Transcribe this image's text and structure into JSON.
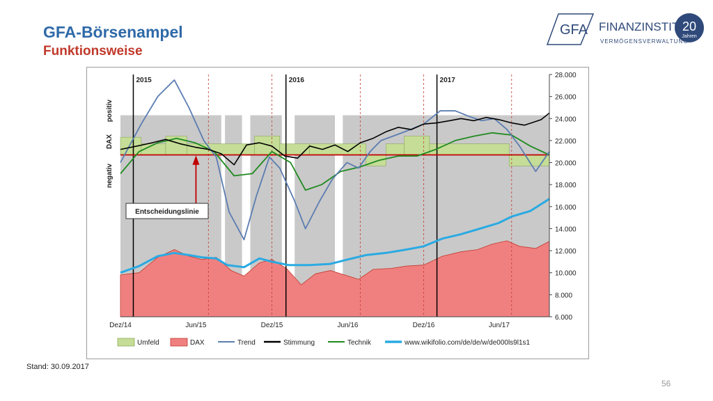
{
  "page": {
    "title": "GFA-Börsenampel",
    "subtitle": "Funktionsweise",
    "stand": "Stand: 30.09.2017",
    "page_number": "56"
  },
  "logo": {
    "badge_text": "GFA",
    "name_part1": "Finanz",
    "name_part2": "Institut",
    "tagline": "Vermögensverwaltung",
    "anniversary_number": "20",
    "anniversary_text": "Jahren",
    "color": "#2f4a7a"
  },
  "chart_data": {
    "type": "line",
    "y_axis": {
      "min": 6000,
      "max": 28000,
      "ticks": [
        "28.000",
        "26.000",
        "24.000",
        "22.000",
        "20.000",
        "18.000",
        "16.000",
        "14.000",
        "12.000",
        "10.000",
        "8.000",
        "6.000"
      ]
    },
    "x_axis": {
      "start": "2014-12-01",
      "end": "2017-09-30",
      "tick_labels": [
        "Dez/14",
        "Jun/15",
        "Dez/15",
        "Jun/16",
        "Dez/16",
        "Jun/17"
      ]
    },
    "year_labels": [
      "2015",
      "2016",
      "2017"
    ],
    "left_labels": {
      "top": "positiv",
      "middle": "DAX",
      "bottom": "negativ"
    },
    "annotation": "Entscheidungslinie",
    "decision_line": 20700,
    "legend": [
      "Umfeld",
      "DAX",
      "Trend",
      "Stimmung",
      "Technik",
      "www.wikifolio.com/de/de/w/de000ls9l1s1"
    ],
    "colors": {
      "umfeld": "#c5dd96",
      "dax": "#f08080",
      "trend": "#5b7db1",
      "stimmung": "#000000",
      "technik": "#1f8a1f",
      "wikifolio": "#2aaae2",
      "decision": "#c00000",
      "gray_band": "#c0c0c0"
    },
    "dax": {
      "x": [
        "2014-12-01",
        "2015-01-15",
        "2015-03-01",
        "2015-04-10",
        "2015-05-15",
        "2015-06-15",
        "2015-07-20",
        "2015-08-25",
        "2015-09-25",
        "2015-11-01",
        "2015-12-01",
        "2016-01-05",
        "2016-02-10",
        "2016-03-15",
        "2016-04-20",
        "2016-06-27",
        "2016-08-01",
        "2016-09-15",
        "2016-10-20",
        "2016-12-01",
        "2017-01-15",
        "2017-03-01",
        "2017-04-10",
        "2017-05-15",
        "2017-06-20",
        "2017-07-20",
        "2017-08-28",
        "2017-09-30"
      ],
      "values": [
        9800,
        10000,
        11400,
        12100,
        11500,
        11200,
        11400,
        10200,
        9700,
        10900,
        11200,
        10400,
        8900,
        9900,
        10200,
        9400,
        10300,
        10400,
        10600,
        10700,
        11500,
        11900,
        12100,
        12600,
        12900,
        12400,
        12200,
        12850
      ]
    },
    "wikifolio": {
      "x": [
        "2014-12-01",
        "2015-01-15",
        "2015-03-01",
        "2015-04-10",
        "2015-05-15",
        "2015-06-15",
        "2015-07-20",
        "2015-08-15",
        "2015-09-25",
        "2015-11-01",
        "2015-12-01",
        "2016-01-10",
        "2016-03-01",
        "2016-04-20",
        "2016-06-01",
        "2016-07-15",
        "2016-09-01",
        "2016-10-20",
        "2016-12-01",
        "2017-01-15",
        "2017-03-01",
        "2017-04-15",
        "2017-05-30",
        "2017-07-01",
        "2017-08-15",
        "2017-09-30"
      ],
      "values": [
        10000,
        10600,
        11500,
        11800,
        11600,
        11400,
        11300,
        10700,
        10500,
        11300,
        11000,
        10700,
        10700,
        10800,
        11200,
        11600,
        11800,
        12100,
        12400,
        13100,
        13500,
        14000,
        14500,
        15100,
        15600,
        16700
      ]
    },
    "trend": {
      "x": [
        "2014-12-01",
        "2015-01-20",
        "2015-03-01",
        "2015-04-10",
        "2015-05-15",
        "2015-06-20",
        "2015-07-20",
        "2015-08-20",
        "2015-09-25",
        "2015-10-25",
        "2015-11-25",
        "2015-12-20",
        "2016-01-25",
        "2016-02-20",
        "2016-03-25",
        "2016-04-25",
        "2016-05-30",
        "2016-06-27",
        "2016-07-25",
        "2016-08-20",
        "2016-09-25",
        "2016-10-30",
        "2016-12-01",
        "2017-01-10",
        "2017-02-15",
        "2017-03-20",
        "2017-04-20",
        "2017-05-20",
        "2017-06-20",
        "2017-07-20",
        "2017-08-28",
        "2017-09-30"
      ],
      "values": [
        20000,
        23500,
        26000,
        27500,
        25000,
        22000,
        20500,
        15500,
        13000,
        17000,
        20500,
        19500,
        16500,
        14000,
        16500,
        18500,
        20000,
        19500,
        21000,
        22000,
        22500,
        23000,
        23500,
        24700,
        24700,
        24200,
        23800,
        24000,
        23000,
        21500,
        19200,
        21000
      ]
    },
    "stimmung": {
      "x": [
        "2014-12-01",
        "2015-01-10",
        "2015-02-15",
        "2015-03-20",
        "2015-04-25",
        "2015-05-30",
        "2015-07-01",
        "2015-08-01",
        "2015-09-01",
        "2015-10-01",
        "2015-11-01",
        "2015-12-01",
        "2016-01-01",
        "2016-02-01",
        "2016-03-01",
        "2016-04-01",
        "2016-05-01",
        "2016-06-01",
        "2016-07-01",
        "2016-08-01",
        "2016-09-01",
        "2016-10-01",
        "2016-11-01",
        "2016-12-01",
        "2017-01-01",
        "2017-02-01",
        "2017-03-01",
        "2017-04-01",
        "2017-05-01",
        "2017-06-01",
        "2017-07-01",
        "2017-08-01",
        "2017-09-10",
        "2017-09-30"
      ],
      "values": [
        21200,
        21500,
        21800,
        22100,
        21700,
        21400,
        21200,
        20800,
        19800,
        21600,
        21800,
        21500,
        20600,
        20400,
        21500,
        21200,
        21600,
        21000,
        21800,
        22200,
        22800,
        23200,
        23000,
        23500,
        23600,
        23800,
        24000,
        23800,
        24100,
        23900,
        23600,
        23400,
        23900,
        24500
      ]
    },
    "technik": {
      "x": [
        "2014-12-01",
        "2015-01-15",
        "2015-03-01",
        "2015-04-15",
        "2015-05-30",
        "2015-07-15",
        "2015-09-01",
        "2015-10-15",
        "2015-12-01",
        "2016-01-15",
        "2016-02-20",
        "2016-03-30",
        "2016-05-15",
        "2016-06-30",
        "2016-08-15",
        "2016-10-01",
        "2016-11-15",
        "2016-12-30",
        "2017-02-15",
        "2017-04-01",
        "2017-05-15",
        "2017-07-01",
        "2017-08-15",
        "2017-09-30"
      ],
      "values": [
        19000,
        21000,
        21800,
        22200,
        21800,
        21000,
        18800,
        19000,
        21000,
        20000,
        17500,
        18000,
        19200,
        19600,
        20200,
        20600,
        20600,
        21200,
        22000,
        22400,
        22700,
        22500,
        21500,
        20700
      ]
    },
    "gray_periods": [
      [
        "2014-12-01",
        "2015-08-01"
      ],
      [
        "2015-08-10",
        "2015-09-20"
      ],
      [
        "2015-10-10",
        "2015-12-25"
      ],
      [
        "2016-01-25",
        "2016-05-01"
      ],
      [
        "2016-05-20",
        "2017-09-30"
      ]
    ],
    "umfeld_segments": [
      {
        "start": "2014-12-01",
        "end": "2015-01-20",
        "value": 22300
      },
      {
        "start": "2015-01-20",
        "end": "2015-03-20",
        "value": 21700
      },
      {
        "start": "2015-03-20",
        "end": "2015-05-10",
        "value": 22400
      },
      {
        "start": "2015-05-10",
        "end": "2015-10-20",
        "value": 21700
      },
      {
        "start": "2015-10-20",
        "end": "2015-12-20",
        "value": 22400
      },
      {
        "start": "2015-12-20",
        "end": "2016-03-01",
        "value": 21700
      },
      {
        "start": "2016-03-01",
        "end": "2016-07-15",
        "value": 21700
      },
      {
        "start": "2016-07-15",
        "end": "2016-09-01",
        "value": 19700
      },
      {
        "start": "2016-09-01",
        "end": "2016-10-15",
        "value": 21700
      },
      {
        "start": "2016-10-15",
        "end": "2016-12-15",
        "value": 22400
      },
      {
        "start": "2016-12-15",
        "end": "2017-06-25",
        "value": 21700
      },
      {
        "start": "2017-06-25",
        "end": "2017-09-30",
        "value": 19700
      }
    ],
    "solid_vlines": [
      "2015-01-01",
      "2016-01-04",
      "2017-01-02"
    ],
    "dashed_vlines": [
      "2015-07-01",
      "2015-12-01",
      "2016-07-01",
      "2016-12-01",
      "2017-07-01"
    ]
  }
}
